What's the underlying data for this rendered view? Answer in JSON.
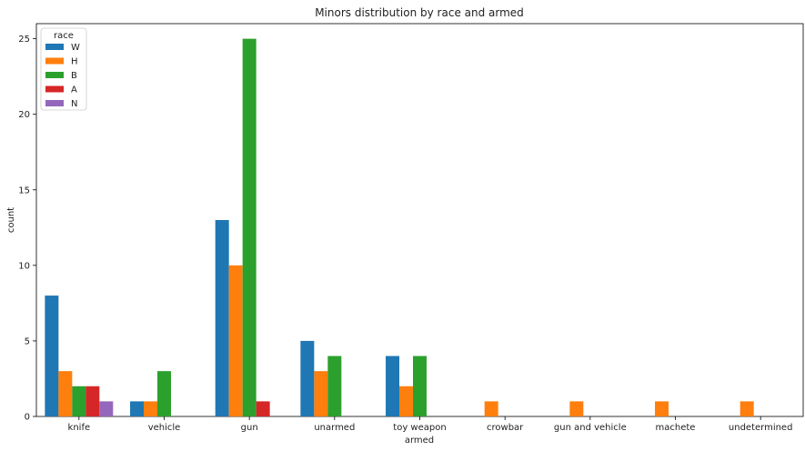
{
  "chart_data": {
    "type": "bar",
    "title": "Minors distribution by race and armed",
    "xlabel": "armed",
    "ylabel": "count",
    "ylim": [
      0,
      26
    ],
    "yticks": [
      0,
      5,
      10,
      15,
      20,
      25
    ],
    "categories": [
      "knife",
      "vehicle",
      "gun",
      "unarmed",
      "toy weapon",
      "crowbar",
      "gun and vehicle",
      "machete",
      "undetermined"
    ],
    "legend": {
      "title": "race",
      "placement": "top-left"
    },
    "series": [
      {
        "name": "W",
        "color": "#1f77b4",
        "values": [
          8,
          1,
          13,
          5,
          4,
          0,
          0,
          0,
          0
        ]
      },
      {
        "name": "H",
        "color": "#ff7f0e",
        "values": [
          3,
          1,
          10,
          3,
          2,
          1,
          1,
          1,
          1
        ]
      },
      {
        "name": "B",
        "color": "#2ca02c",
        "values": [
          2,
          3,
          25,
          4,
          4,
          0,
          0,
          0,
          0
        ]
      },
      {
        "name": "A",
        "color": "#d62728",
        "values": [
          2,
          0,
          1,
          0,
          0,
          0,
          0,
          0,
          0
        ]
      },
      {
        "name": "N",
        "color": "#9467bd",
        "values": [
          1,
          0,
          0,
          0,
          0,
          0,
          0,
          0,
          0
        ]
      }
    ]
  }
}
